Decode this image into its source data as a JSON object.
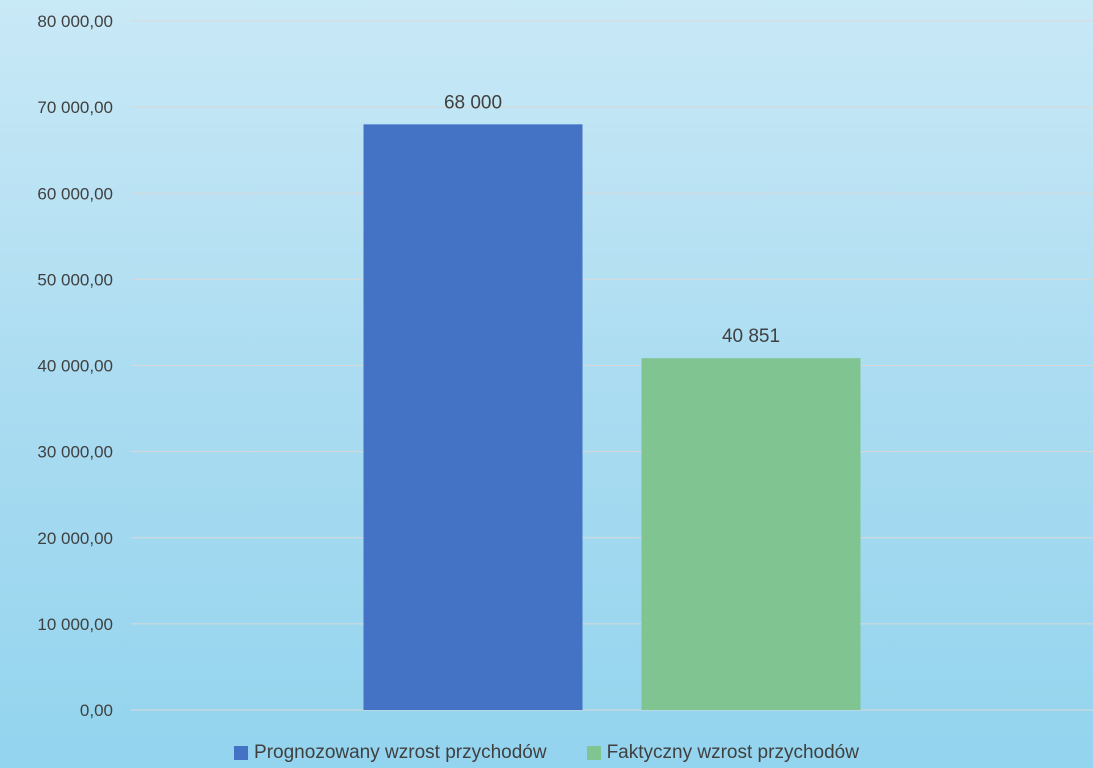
{
  "chart_data": {
    "type": "bar",
    "categories": [
      ""
    ],
    "series": [
      {
        "name": "Prognozowany wzrost przychodów",
        "values": [
          68000
        ],
        "label": "68 000",
        "color": "#4472c4"
      },
      {
        "name": "Faktyczny wzrost przychodów",
        "values": [
          40851
        ],
        "label": "40 851",
        "color": "#7fc491"
      }
    ],
    "yticks": [
      0,
      10000,
      20000,
      30000,
      40000,
      50000,
      60000,
      70000,
      80000
    ],
    "ytick_labels": [
      "0,00",
      "10 000,00",
      "20 000,00",
      "30 000,00",
      "40 000,00",
      "50 000,00",
      "60 000,00",
      "70 000,00",
      "80 000,00"
    ],
    "ylim": [
      0,
      80000
    ],
    "grid": true,
    "legend_position": "bottom",
    "title": "",
    "xlabel": "",
    "ylabel": ""
  }
}
